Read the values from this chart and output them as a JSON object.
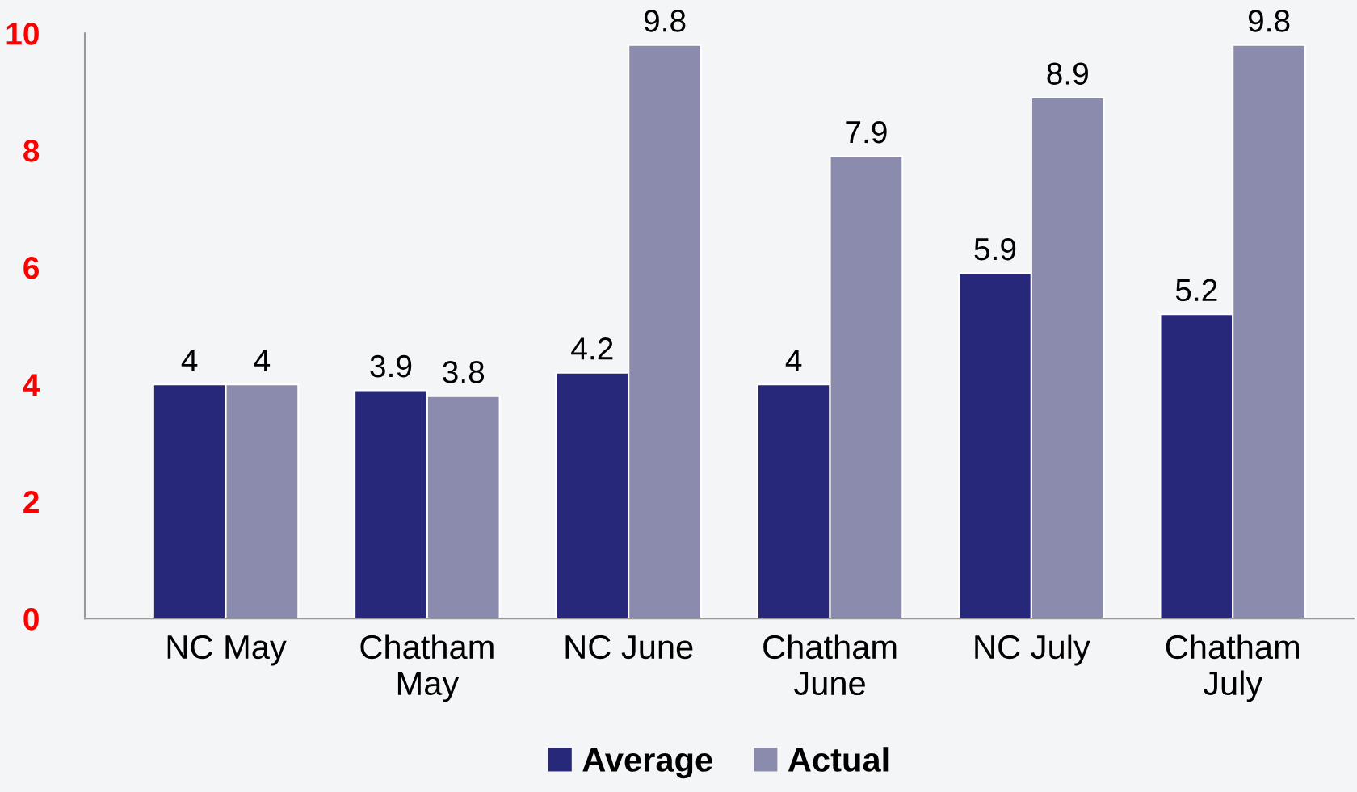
{
  "chart_data": {
    "type": "bar",
    "categories": [
      "NC May",
      "Chatham\nMay",
      "NC June",
      "Chatham\nJune",
      "NC July",
      "Chatham\nJuly"
    ],
    "series": [
      {
        "name": "Average",
        "color": "#27287a",
        "values": [
          4,
          3.9,
          4.2,
          4,
          5.9,
          5.2
        ]
      },
      {
        "name": "Actual",
        "color": "#8b8bae",
        "values": [
          4,
          3.8,
          9.8,
          7.9,
          8.9,
          9.8
        ]
      }
    ],
    "ylim": [
      0,
      10
    ],
    "yticks": [
      0,
      2,
      4,
      6,
      8,
      10
    ],
    "data_labels": true,
    "grid": false,
    "legend": "bottom"
  }
}
